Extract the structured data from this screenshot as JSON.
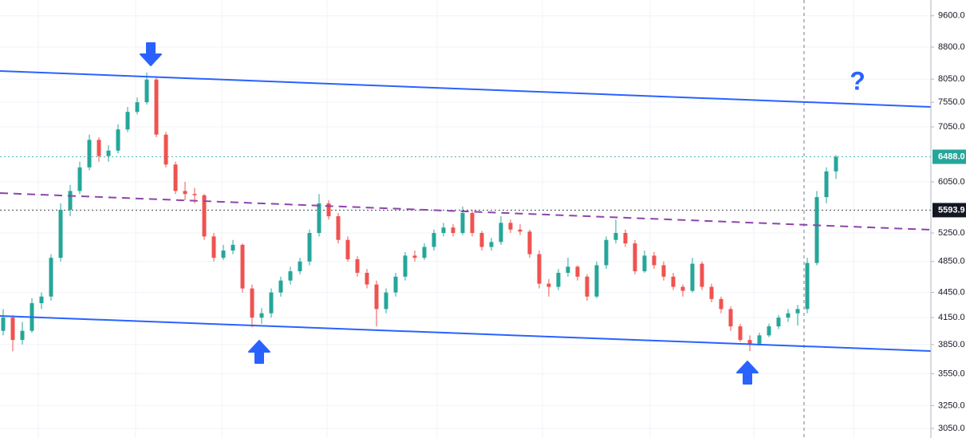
{
  "chart_data": {
    "type": "candlestick",
    "open": [
      4000,
      4150,
      3900,
      4000,
      4320,
      4400,
      4900,
      5600,
      5900,
      6300,
      6800,
      6500,
      6600,
      7000,
      7350,
      7550,
      8040,
      6900,
      6350,
      5900,
      5850,
      5830,
      5200,
      4900,
      5000,
      5080,
      4500,
      4150,
      4200,
      4450,
      4600,
      4720,
      4850,
      5250,
      5700,
      5500,
      5150,
      4880,
      4700,
      4550,
      4250,
      4450,
      4650,
      4930,
      4900,
      5050,
      5250,
      5330,
      5250,
      5550,
      5250,
      5050,
      5120,
      5400,
      5300,
      5270,
      4950,
      4560,
      4520,
      4700,
      4780,
      4650,
      4400,
      4800,
      5150,
      5250,
      5100,
      4720,
      4930,
      4800,
      4650,
      4520,
      4470,
      4820,
      4520,
      4370,
      4250,
      4050,
      3900,
      3860,
      3950,
      4050,
      4150,
      4200,
      4250,
      4830,
      5800,
      6230
    ],
    "high": [
      4250,
      4180,
      4100,
      4380,
      4450,
      4950,
      5700,
      6000,
      6400,
      6900,
      6850,
      6700,
      7100,
      7450,
      7650,
      8200,
      8100,
      6950,
      6400,
      6050,
      5950,
      5850,
      5250,
      5080,
      5150,
      5100,
      4550,
      4260,
      4500,
      4650,
      4780,
      4900,
      5300,
      5850,
      5750,
      5550,
      5200,
      4920,
      4750,
      4600,
      4500,
      4700,
      4980,
      5000,
      5100,
      5300,
      5400,
      5380,
      5650,
      5600,
      5280,
      5180,
      5500,
      5450,
      5380,
      5300,
      5000,
      4620,
      4750,
      4900,
      4800,
      4680,
      4850,
      5200,
      5450,
      5300,
      5150,
      5000,
      4980,
      4850,
      4700,
      4550,
      4900,
      4850,
      4560,
      4400,
      4280,
      4080,
      3950,
      3980,
      4080,
      4180,
      4250,
      4300,
      4900,
      5900,
      6300,
      6520
    ],
    "low": [
      3950,
      3780,
      3850,
      3980,
      4250,
      4350,
      4850,
      5500,
      5850,
      6250,
      6400,
      6400,
      6550,
      6950,
      7300,
      7500,
      6850,
      6300,
      5850,
      5750,
      5700,
      5150,
      4850,
      4870,
      4950,
      4450,
      4040,
      4080,
      4150,
      4400,
      4550,
      4680,
      4800,
      5200,
      5450,
      5100,
      4850,
      4650,
      4500,
      4050,
      4200,
      4400,
      4600,
      4850,
      4870,
      5000,
      5200,
      5200,
      5220,
      5200,
      5000,
      5000,
      5080,
      5250,
      5220,
      4900,
      4500,
      4400,
      4480,
      4650,
      4600,
      4350,
      4380,
      4750,
      5100,
      5050,
      4680,
      4700,
      4750,
      4600,
      4480,
      4400,
      4450,
      4480,
      4330,
      4200,
      4000,
      3880,
      3780,
      3840,
      3930,
      4020,
      4100,
      4060,
      4200,
      4800,
      5700,
      6100
    ],
    "close": [
      4150,
      3900,
      4000,
      4320,
      4400,
      4900,
      5600,
      5900,
      6300,
      6800,
      6500,
      6600,
      7000,
      7350,
      7550,
      8040,
      6900,
      6350,
      5900,
      5850,
      5830,
      5200,
      4900,
      5000,
      5080,
      4500,
      4150,
      4200,
      4450,
      4600,
      4720,
      4850,
      5250,
      5700,
      5500,
      5150,
      4880,
      4700,
      4550,
      4250,
      4450,
      4650,
      4930,
      4900,
      5050,
      5250,
      5330,
      5250,
      5550,
      5250,
      5050,
      5120,
      5400,
      5300,
      5270,
      4950,
      4560,
      4520,
      4700,
      4780,
      4650,
      4400,
      4800,
      5150,
      5250,
      5100,
      4720,
      4930,
      4800,
      4650,
      4520,
      4470,
      4820,
      4520,
      4370,
      4250,
      4050,
      3900,
      3860,
      3950,
      4050,
      4150,
      4200,
      4250,
      4830,
      5800,
      6230,
      6488
    ],
    "up_color": "#26a69a",
    "down_color": "#ef5350",
    "ylim": [
      2970,
      10030
    ],
    "log_scale": true,
    "grid": true,
    "yticks": [
      {
        "value": 3050,
        "label": "3050.0"
      },
      {
        "value": 3250,
        "label": "3250.0"
      },
      {
        "value": 3550,
        "label": "3550.0"
      },
      {
        "value": 3850,
        "label": "3850.0"
      },
      {
        "value": 4150,
        "label": "4150.0"
      },
      {
        "value": 4450,
        "label": "4450.0"
      },
      {
        "value": 4850,
        "label": "4850.0"
      },
      {
        "value": 5250,
        "label": "5250.0"
      },
      {
        "value": 6050,
        "label": "6050.0"
      },
      {
        "value": 7050,
        "label": "7050.0"
      },
      {
        "value": 7550,
        "label": "7550.0"
      },
      {
        "value": 8050,
        "label": "8050.0"
      },
      {
        "value": 8800,
        "label": "8800.0"
      },
      {
        "value": 9600,
        "label": "9600.0"
      }
    ],
    "price_labels": [
      {
        "value": 6488,
        "label": "6488.0",
        "color": "#26a69a"
      },
      {
        "value": 5593.9,
        "label": "5593.9",
        "color": "#131722"
      }
    ],
    "annotation": "?"
  }
}
